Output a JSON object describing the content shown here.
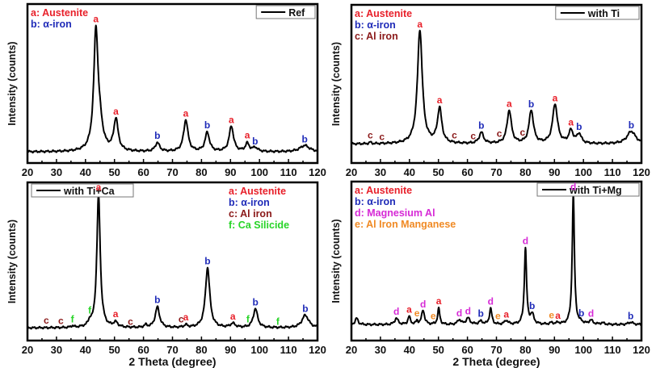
{
  "colors": {
    "a": "#e8202a",
    "b": "#1f2bb8",
    "c": "#8b1a1a",
    "d": "#d62ad6",
    "e": "#f08a24",
    "f": "#27d427",
    "line": "#000000"
  },
  "chart_data": [
    {
      "type": "line",
      "panel": "top-left",
      "series_name": "Ref",
      "xlabel": "",
      "ylabel": "Intensity (counts)",
      "xlim": [
        20,
        120
      ],
      "xticks": [
        20,
        30,
        40,
        50,
        60,
        70,
        80,
        90,
        100,
        110,
        120
      ],
      "legend_placement": "top-right",
      "phase_legend_placement": "top-left",
      "phase_legend": [
        {
          "key": "a",
          "text": "a: Austenite"
        },
        {
          "key": "b",
          "text": "b: α-iron"
        }
      ],
      "baseline": 0.07,
      "peaks": [
        {
          "x": 43.6,
          "h": 0.74,
          "w": 0.9,
          "label": "a"
        },
        {
          "x": 45.0,
          "h": 0.12,
          "w": 1.2,
          "label": ""
        },
        {
          "x": 50.5,
          "h": 0.2,
          "w": 0.9,
          "label": "a"
        },
        {
          "x": 64.8,
          "h": 0.055,
          "w": 0.9,
          "label": "b"
        },
        {
          "x": 74.6,
          "h": 0.2,
          "w": 0.9,
          "label": "a"
        },
        {
          "x": 82.0,
          "h": 0.12,
          "w": 0.9,
          "label": "b"
        },
        {
          "x": 90.3,
          "h": 0.16,
          "w": 0.9,
          "label": "a"
        },
        {
          "x": 95.8,
          "h": 0.05,
          "w": 0.8,
          "label": "a"
        },
        {
          "x": 98.5,
          "h": 0.025,
          "w": 1.0,
          "label": "b"
        },
        {
          "x": 115.6,
          "h": 0.04,
          "w": 2.0,
          "label": "b"
        }
      ]
    },
    {
      "type": "line",
      "panel": "top-right",
      "series_name": "with Ti",
      "xlabel": "",
      "ylabel": "Intensity (counts)",
      "xlim": [
        20,
        120
      ],
      "xticks": [
        20,
        30,
        40,
        50,
        60,
        70,
        80,
        90,
        100,
        110,
        120
      ],
      "legend_placement": "top-right",
      "phase_legend_placement": "top-left",
      "phase_legend": [
        {
          "key": "a",
          "text": "a: Austenite"
        },
        {
          "key": "b",
          "text": "b: α-iron"
        },
        {
          "key": "c",
          "text": "c: Al iron"
        }
      ],
      "baseline": 0.12,
      "peaks": [
        {
          "x": 26.5,
          "h": 0.01,
          "w": 0.4,
          "label": "c"
        },
        {
          "x": 30.5,
          "h": 0.0,
          "w": 0.4,
          "label": "c"
        },
        {
          "x": 43.6,
          "h": 0.72,
          "w": 1.0,
          "label": "a"
        },
        {
          "x": 50.4,
          "h": 0.22,
          "w": 0.9,
          "label": "a"
        },
        {
          "x": 55.5,
          "h": 0.0,
          "w": 0.5,
          "label": "c"
        },
        {
          "x": 62.0,
          "h": 0.0,
          "w": 0.5,
          "label": "c"
        },
        {
          "x": 64.8,
          "h": 0.07,
          "w": 0.9,
          "label": "b"
        },
        {
          "x": 71.0,
          "h": 0.0,
          "w": 0.5,
          "label": "c"
        },
        {
          "x": 74.4,
          "h": 0.21,
          "w": 0.9,
          "label": "a"
        },
        {
          "x": 79.0,
          "h": 0.0,
          "w": 0.5,
          "label": "c"
        },
        {
          "x": 82.0,
          "h": 0.21,
          "w": 0.9,
          "label": "b"
        },
        {
          "x": 90.2,
          "h": 0.25,
          "w": 1.0,
          "label": "a"
        },
        {
          "x": 95.7,
          "h": 0.08,
          "w": 0.9,
          "label": "a"
        },
        {
          "x": 98.5,
          "h": 0.06,
          "w": 0.9,
          "label": "b"
        },
        {
          "x": 116.5,
          "h": 0.08,
          "w": 1.8,
          "label": "b"
        }
      ]
    },
    {
      "type": "line",
      "panel": "bottom-left",
      "series_name": "with Ti+Ca",
      "xlabel": "2 Theta (degree)",
      "ylabel": "Intensity (counts)",
      "xlim": [
        20,
        120
      ],
      "xticks": [
        20,
        30,
        40,
        50,
        60,
        70,
        80,
        90,
        100,
        110,
        120
      ],
      "legend_placement": "top-left",
      "phase_legend_placement": "top-right",
      "phase_legend": [
        {
          "key": "a",
          "text": "a: Austenite"
        },
        {
          "key": "b",
          "text": "b: α-iron"
        },
        {
          "key": "c",
          "text": "c: Al iron"
        },
        {
          "key": "f",
          "text": "f: Ca Silicide"
        }
      ],
      "baseline": 0.08,
      "peaks": [
        {
          "x": 26.5,
          "h": 0.0,
          "w": 0.4,
          "label": "c"
        },
        {
          "x": 31.5,
          "h": 0.0,
          "w": 0.4,
          "label": "c"
        },
        {
          "x": 35.5,
          "h": 0.01,
          "w": 0.5,
          "label": "f"
        },
        {
          "x": 41.5,
          "h": 0.03,
          "w": 0.6,
          "label": "f"
        },
        {
          "x": 44.5,
          "h": 0.84,
          "w": 0.7,
          "label": "a"
        },
        {
          "x": 50.4,
          "h": 0.03,
          "w": 0.9,
          "label": "a"
        },
        {
          "x": 55.5,
          "h": 0.0,
          "w": 0.4,
          "label": "c"
        },
        {
          "x": 60.8,
          "h": 0.015,
          "w": 0.6,
          "label": ""
        },
        {
          "x": 64.8,
          "h": 0.13,
          "w": 0.9,
          "label": "b"
        },
        {
          "x": 73.0,
          "h": 0.0,
          "w": 0.5,
          "label": "c"
        },
        {
          "x": 74.6,
          "h": 0.015,
          "w": 0.7,
          "label": "a"
        },
        {
          "x": 82.1,
          "h": 0.38,
          "w": 0.9,
          "label": "b"
        },
        {
          "x": 90.8,
          "h": 0.025,
          "w": 1.0,
          "label": "a"
        },
        {
          "x": 96.0,
          "h": 0.0,
          "w": 0.5,
          "label": "f"
        },
        {
          "x": 98.6,
          "h": 0.12,
          "w": 0.9,
          "label": "b"
        },
        {
          "x": 106.3,
          "h": 0.0,
          "w": 0.5,
          "label": "f"
        },
        {
          "x": 115.8,
          "h": 0.08,
          "w": 1.4,
          "label": "b"
        }
      ]
    },
    {
      "type": "line",
      "panel": "bottom-right",
      "series_name": "with Ti+Mg",
      "xlabel": "2 Theta (degree)",
      "ylabel": "Intensity (counts)",
      "xlim": [
        20,
        120
      ],
      "xticks": [
        20,
        30,
        40,
        50,
        60,
        70,
        80,
        90,
        100,
        110,
        120
      ],
      "legend_placement": "top-right",
      "phase_legend_placement": "top-left",
      "phase_legend": [
        {
          "key": "a",
          "text": "a: Austenite"
        },
        {
          "key": "b",
          "text": "b: α-iron"
        },
        {
          "key": "d",
          "text": "d: Magnesium Al"
        },
        {
          "key": "e",
          "text": "e: Al Iron Manganese"
        }
      ],
      "baseline": 0.1,
      "peaks": [
        {
          "x": 21.8,
          "h": 0.04,
          "w": 0.6,
          "label": ""
        },
        {
          "x": 35.5,
          "h": 0.04,
          "w": 0.7,
          "label": "d"
        },
        {
          "x": 39.9,
          "h": 0.05,
          "w": 0.5,
          "label": "a"
        },
        {
          "x": 42.6,
          "h": 0.02,
          "w": 0.4,
          "label": "e"
        },
        {
          "x": 44.7,
          "h": 0.09,
          "w": 0.6,
          "label": "d"
        },
        {
          "x": 48.2,
          "h": 0.0,
          "w": 0.4,
          "label": "e"
        },
        {
          "x": 50.1,
          "h": 0.1,
          "w": 0.45,
          "label": "a"
        },
        {
          "x": 57.2,
          "h": 0.03,
          "w": 0.7,
          "label": "d"
        },
        {
          "x": 60.2,
          "h": 0.04,
          "w": 0.8,
          "label": "d"
        },
        {
          "x": 64.6,
          "h": 0.02,
          "w": 0.8,
          "label": "b"
        },
        {
          "x": 68.0,
          "h": 0.1,
          "w": 0.5,
          "label": "d"
        },
        {
          "x": 70.5,
          "h": 0.0,
          "w": 0.4,
          "label": "e"
        },
        {
          "x": 73.4,
          "h": 0.025,
          "w": 0.7,
          "label": "a"
        },
        {
          "x": 80.0,
          "h": 0.48,
          "w": 0.45,
          "label": "d"
        },
        {
          "x": 82.3,
          "h": 0.06,
          "w": 0.7,
          "label": ""
        },
        {
          "x": 82.3,
          "h": 0.0,
          "w": 0.7,
          "label": "b"
        },
        {
          "x": 89.0,
          "h": 0.01,
          "w": 0.6,
          "label": "e"
        },
        {
          "x": 91.2,
          "h": 0.01,
          "w": 0.6,
          "label": "a"
        },
        {
          "x": 96.5,
          "h": 0.82,
          "w": 0.45,
          "label": "d"
        },
        {
          "x": 99.3,
          "h": 0.01,
          "w": 0.6,
          "label": "b"
        },
        {
          "x": 102.6,
          "h": 0.025,
          "w": 0.8,
          "label": "d"
        },
        {
          "x": 106.5,
          "h": 0.01,
          "w": 0.8,
          "label": ""
        },
        {
          "x": 116.3,
          "h": 0.015,
          "w": 1.0,
          "label": "b"
        }
      ]
    }
  ]
}
